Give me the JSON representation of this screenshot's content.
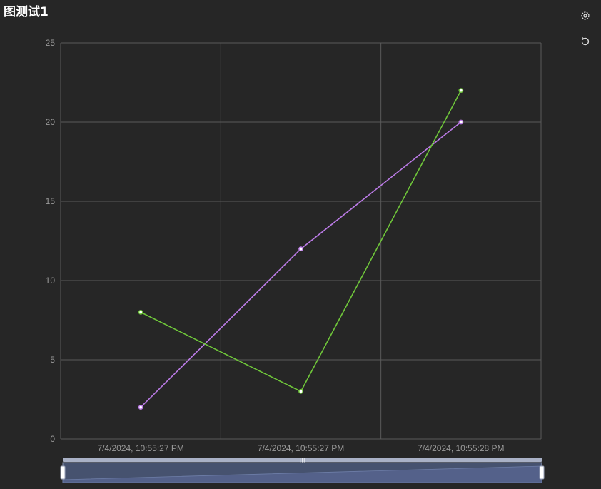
{
  "title": "图测试1",
  "toolbar": [
    {
      "icon": "settings-icon"
    },
    {
      "icon": "refresh-icon"
    }
  ],
  "colors": {
    "background": "#262626",
    "grid": "#5a5a5a",
    "series_1": "#bb7be6",
    "series_2": "#6fc63a"
  },
  "chart_data": {
    "type": "line",
    "categories": [
      "7/4/2024, 10:55:27 PM",
      "7/4/2024, 10:55:27 PM",
      "7/4/2024, 10:55:28 PM"
    ],
    "series": [
      {
        "color": "#bb7be6",
        "values": [
          2,
          12,
          20
        ]
      },
      {
        "color": "#6fc63a",
        "values": [
          8,
          3,
          22
        ]
      }
    ],
    "ylim": [
      0,
      25
    ],
    "yticks": [
      0,
      5,
      10,
      15,
      20,
      25
    ],
    "grid": true,
    "zoom_slider": true
  }
}
